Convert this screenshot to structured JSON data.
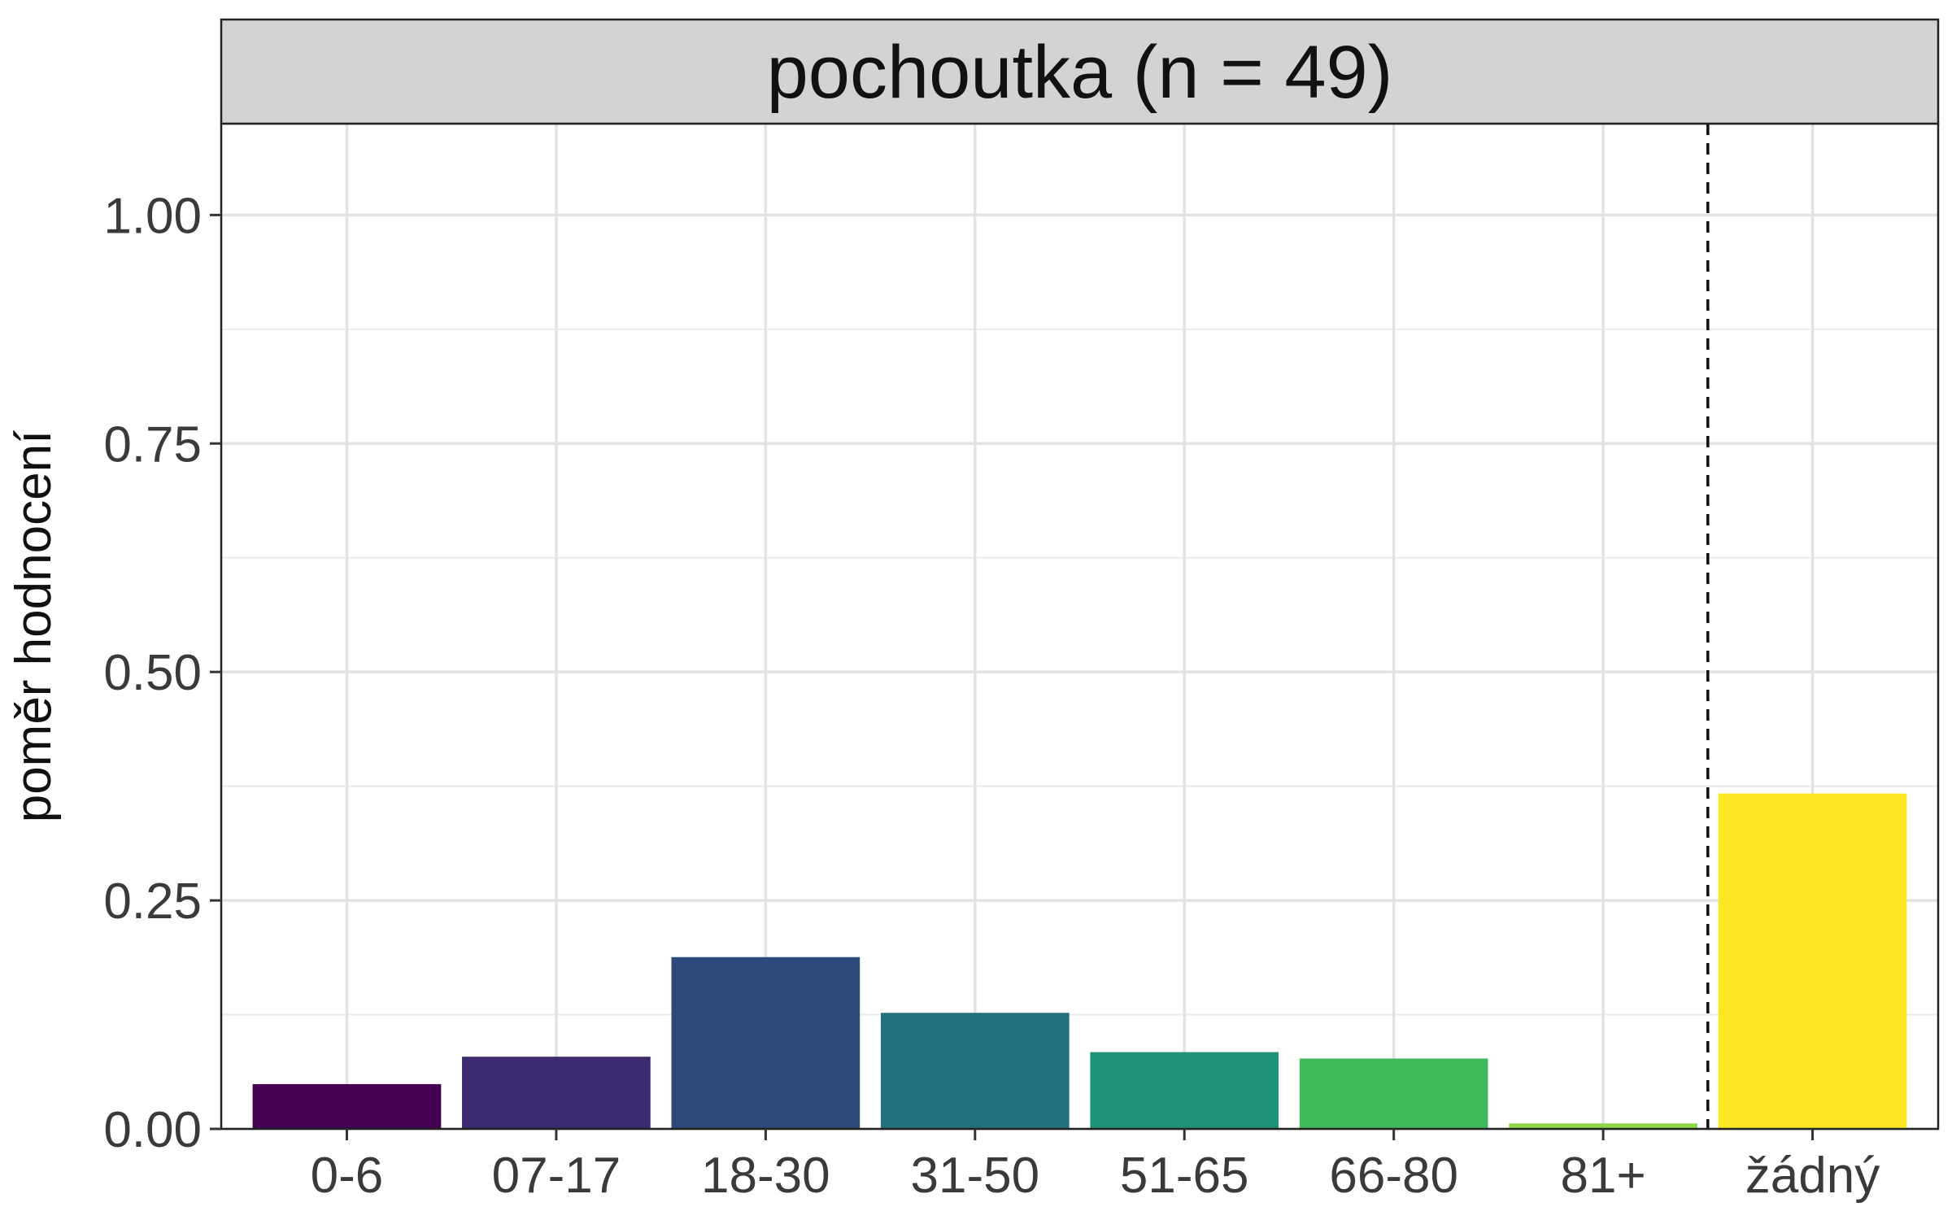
{
  "chart_data": {
    "type": "bar",
    "facet_title": "pochoutka (n = 49)",
    "xlabel": "",
    "ylabel": "poměr hodnocení",
    "categories": [
      "0-6",
      "07-17",
      "18-30",
      "31-50",
      "51-65",
      "66-80",
      "81+",
      "žádný"
    ],
    "values": [
      0.049,
      0.079,
      0.188,
      0.127,
      0.084,
      0.077,
      0.006,
      0.367
    ],
    "colors": [
      "#440154",
      "#3b2a6d",
      "#2c4a7a",
      "#21707e",
      "#1f9378",
      "#3fb95b",
      "#8fd748",
      "#fde725"
    ],
    "ylim": [
      0,
      1.1
    ],
    "yticks": [
      0,
      0.25,
      0.5,
      0.75,
      1.0
    ],
    "ytick_labels": [
      "0.00",
      "0.25",
      "0.50",
      "0.75",
      "1.00"
    ],
    "vline_after_category": "81+",
    "vline_style": "dashed",
    "grid": true
  }
}
